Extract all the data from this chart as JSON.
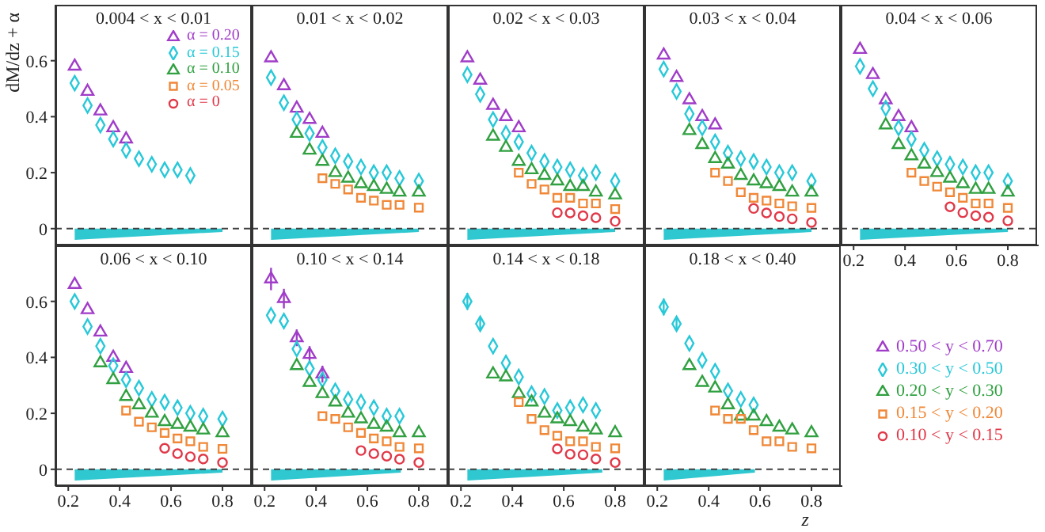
{
  "chart_data": [
    {
      "type": "scatter",
      "title": "0.004 < x < 0.01",
      "ylabel": "dM/dz + α",
      "tick_labels": "y",
      "legend": "top right",
      "x": [
        0.225,
        0.275,
        0.325,
        0.375,
        0.425,
        0.475,
        0.525,
        0.575,
        0.625,
        0.675
      ],
      "xlim": [
        0.15,
        0.92
      ],
      "ylim": [
        -0.06,
        0.8
      ],
      "xticks": [
        0.2,
        0.4,
        0.6,
        0.8
      ],
      "yticks": [
        0,
        0.2,
        0.4,
        0.6
      ],
      "ref_lines": [
        {
          "axis": "y",
          "value": 0,
          "line_style": "dashed",
          "color": "#404040"
        }
      ],
      "series": [
        {
          "name": "α = 0.20",
          "color": "#a03cc8",
          "marker": "triangle",
          "values": [
            0.58,
            0.49,
            0.42,
            0.36,
            0.32,
            null,
            null,
            null,
            null,
            null
          ]
        },
        {
          "name": "α = 0.15",
          "color": "#28c8d8",
          "marker": "diamond",
          "values": [
            0.52,
            0.44,
            0.37,
            0.32,
            0.28,
            0.25,
            0.23,
            0.21,
            0.21,
            0.19
          ]
        },
        {
          "name": "α = 0.10",
          "color": "#30a040",
          "marker": "triangle",
          "values": [
            null,
            null,
            null,
            null,
            null,
            null,
            null,
            null,
            null,
            null
          ]
        },
        {
          "name": "α = 0.05",
          "color": "#f08838",
          "marker": "square",
          "values": [
            null,
            null,
            null,
            null,
            null,
            null,
            null,
            null,
            null,
            null
          ]
        },
        {
          "name": "α = 0",
          "color": "#e03848",
          "marker": "circle",
          "values": [
            null,
            null,
            null,
            null,
            null,
            null,
            null,
            null,
            null,
            null
          ]
        },
        {
          "type": "area",
          "color": "#30c8d0",
          "x": [
            0.225,
            0.8
          ],
          "values": [
            -0.04,
            -0.012
          ]
        }
      ]
    },
    {
      "type": "scatter",
      "title": "0.01 < x < 0.02",
      "tick_labels": false,
      "x": [
        0.225,
        0.275,
        0.325,
        0.375,
        0.425,
        0.475,
        0.525,
        0.575,
        0.625,
        0.675,
        0.725,
        0.8
      ],
      "xlim": [
        0.15,
        0.92
      ],
      "ylim": [
        -0.06,
        0.8
      ],
      "xticks": [
        0.2,
        0.4,
        0.6,
        0.8
      ],
      "yticks": [
        0,
        0.2,
        0.4,
        0.6
      ],
      "ref_lines": [
        {
          "axis": "y",
          "value": 0,
          "line_style": "dashed",
          "color": "#404040"
        }
      ],
      "series": [
        {
          "color": "#a03cc8",
          "marker": "triangle",
          "values": [
            0.61,
            0.51,
            0.43,
            0.39,
            0.34,
            null,
            null,
            null,
            null,
            null,
            null,
            null
          ]
        },
        {
          "color": "#28c8d8",
          "marker": "diamond",
          "values": [
            0.54,
            0.45,
            0.39,
            0.34,
            0.29,
            0.26,
            0.24,
            0.22,
            0.2,
            0.2,
            0.18,
            0.17
          ]
        },
        {
          "color": "#30a040",
          "marker": "triangle",
          "values": [
            null,
            null,
            0.34,
            0.28,
            0.24,
            0.2,
            0.18,
            0.16,
            0.15,
            0.14,
            0.13,
            0.13
          ]
        },
        {
          "color": "#f08838",
          "marker": "square",
          "values": [
            null,
            null,
            null,
            null,
            0.18,
            0.16,
            0.14,
            0.11,
            0.1,
            0.085,
            0.085,
            0.075
          ]
        },
        {
          "type": "area",
          "color": "#30c8d0",
          "x": [
            0.225,
            0.8
          ],
          "values": [
            -0.04,
            -0.012
          ]
        }
      ]
    },
    {
      "type": "scatter",
      "title": "0.02 < x < 0.03",
      "tick_labels": false,
      "x": [
        0.225,
        0.275,
        0.325,
        0.375,
        0.425,
        0.475,
        0.525,
        0.575,
        0.625,
        0.675,
        0.725,
        0.8
      ],
      "xlim": [
        0.15,
        0.92
      ],
      "ylim": [
        -0.06,
        0.8
      ],
      "xticks": [
        0.2,
        0.4,
        0.6,
        0.8
      ],
      "yticks": [
        0,
        0.2,
        0.4,
        0.6
      ],
      "ref_lines": [
        {
          "axis": "y",
          "value": 0,
          "line_style": "dashed",
          "color": "#404040"
        }
      ],
      "series": [
        {
          "color": "#a03cc8",
          "marker": "triangle",
          "values": [
            0.61,
            0.53,
            0.44,
            0.4,
            0.36,
            null,
            null,
            null,
            null,
            null,
            null,
            null
          ]
        },
        {
          "color": "#28c8d8",
          "marker": "diamond",
          "values": [
            0.55,
            0.48,
            0.39,
            0.34,
            0.31,
            0.27,
            0.24,
            0.22,
            0.21,
            0.19,
            0.2,
            0.17
          ]
        },
        {
          "color": "#30a040",
          "marker": "triangle",
          "values": [
            null,
            null,
            0.33,
            0.29,
            0.24,
            0.21,
            0.19,
            0.17,
            0.15,
            0.15,
            0.13,
            0.12
          ]
        },
        {
          "color": "#f08838",
          "marker": "square",
          "values": [
            null,
            null,
            null,
            null,
            0.2,
            0.16,
            0.14,
            0.11,
            0.11,
            0.09,
            0.09,
            0.07
          ]
        },
        {
          "color": "#e03848",
          "marker": "circle",
          "values": [
            null,
            null,
            null,
            null,
            null,
            null,
            null,
            0.057,
            0.056,
            0.046,
            0.039,
            0.026
          ]
        },
        {
          "type": "area",
          "color": "#30c8d0",
          "x": [
            0.225,
            0.8
          ],
          "values": [
            -0.04,
            -0.012
          ]
        }
      ]
    },
    {
      "type": "scatter",
      "title": "0.03 < x < 0.04",
      "tick_labels": false,
      "x": [
        0.225,
        0.275,
        0.325,
        0.375,
        0.425,
        0.475,
        0.525,
        0.575,
        0.625,
        0.675,
        0.725,
        0.8
      ],
      "xlim": [
        0.15,
        0.92
      ],
      "ylim": [
        -0.06,
        0.8
      ],
      "xticks": [
        0.2,
        0.4,
        0.6,
        0.8
      ],
      "yticks": [
        0,
        0.2,
        0.4,
        0.6
      ],
      "ref_lines": [
        {
          "axis": "y",
          "value": 0,
          "line_style": "dashed",
          "color": "#404040"
        }
      ],
      "series": [
        {
          "color": "#a03cc8",
          "marker": "triangle",
          "values": [
            0.62,
            0.54,
            0.46,
            0.4,
            0.37,
            null,
            null,
            null,
            null,
            null,
            null,
            null
          ]
        },
        {
          "color": "#28c8d8",
          "marker": "diamond",
          "values": [
            0.57,
            0.49,
            0.41,
            0.36,
            0.31,
            0.27,
            0.25,
            0.24,
            0.22,
            0.2,
            0.2,
            0.17
          ]
        },
        {
          "color": "#30a040",
          "marker": "triangle",
          "values": [
            null,
            null,
            0.35,
            0.3,
            0.25,
            0.23,
            0.19,
            0.17,
            0.16,
            0.15,
            0.13,
            0.13
          ]
        },
        {
          "color": "#f08838",
          "marker": "square",
          "values": [
            null,
            null,
            null,
            null,
            0.2,
            0.17,
            0.13,
            0.11,
            0.1,
            0.09,
            0.08,
            0.074
          ]
        },
        {
          "color": "#e03848",
          "marker": "circle",
          "values": [
            null,
            null,
            null,
            null,
            null,
            null,
            null,
            0.072,
            0.056,
            0.043,
            0.035,
            0.022
          ]
        },
        {
          "type": "area",
          "color": "#30c8d0",
          "x": [
            0.225,
            0.8
          ],
          "values": [
            -0.04,
            -0.012
          ]
        }
      ]
    },
    {
      "type": "scatter",
      "title": "0.04 < x < 0.06",
      "tick_labels": "x",
      "x": [
        0.225,
        0.275,
        0.325,
        0.375,
        0.425,
        0.475,
        0.525,
        0.575,
        0.625,
        0.675,
        0.725,
        0.8
      ],
      "xlim": [
        0.15,
        0.92
      ],
      "ylim": [
        -0.06,
        0.8
      ],
      "xticks": [
        0.2,
        0.4,
        0.6,
        0.8
      ],
      "yticks": [
        0,
        0.2,
        0.4,
        0.6
      ],
      "ref_lines": [
        {
          "axis": "y",
          "value": 0,
          "line_style": "dashed",
          "color": "#404040"
        }
      ],
      "series": [
        {
          "color": "#a03cc8",
          "marker": "triangle",
          "values": [
            0.64,
            0.55,
            0.46,
            0.4,
            0.36,
            null,
            null,
            null,
            null,
            null,
            null,
            null
          ]
        },
        {
          "color": "#28c8d8",
          "marker": "diamond",
          "values": [
            0.58,
            0.5,
            0.43,
            0.36,
            0.32,
            0.28,
            0.25,
            0.23,
            0.22,
            0.2,
            0.2,
            0.17
          ]
        },
        {
          "color": "#30a040",
          "marker": "triangle",
          "values": [
            null,
            null,
            0.37,
            0.3,
            0.26,
            0.23,
            0.2,
            0.18,
            0.16,
            0.14,
            0.14,
            0.13
          ]
        },
        {
          "color": "#f08838",
          "marker": "square",
          "values": [
            null,
            null,
            null,
            null,
            0.2,
            0.17,
            0.15,
            0.13,
            0.11,
            0.09,
            0.09,
            0.074
          ]
        },
        {
          "color": "#e03848",
          "marker": "circle",
          "values": [
            null,
            null,
            null,
            null,
            null,
            null,
            null,
            0.078,
            0.057,
            0.046,
            0.041,
            0.028
          ]
        },
        {
          "type": "area",
          "color": "#30c8d0",
          "x": [
            0.225,
            0.8
          ],
          "values": [
            -0.04,
            -0.012
          ]
        }
      ]
    },
    {
      "type": "scatter",
      "title": "0.06 < x < 0.10",
      "x": [
        0.225,
        0.275,
        0.325,
        0.375,
        0.425,
        0.475,
        0.525,
        0.575,
        0.625,
        0.675,
        0.725,
        0.8
      ],
      "xlim": [
        0.15,
        0.92
      ],
      "ylim": [
        -0.06,
        0.8
      ],
      "xticks": [
        0.2,
        0.4,
        0.6,
        0.8
      ],
      "yticks": [
        0,
        0.2,
        0.4,
        0.6
      ],
      "ref_lines": [
        {
          "axis": "y",
          "value": 0,
          "line_style": "dashed",
          "color": "#404040"
        }
      ],
      "series": [
        {
          "color": "#a03cc8",
          "marker": "triangle",
          "values": [
            0.66,
            0.57,
            0.49,
            0.4,
            0.36,
            null,
            null,
            null,
            null,
            null,
            null,
            null
          ]
        },
        {
          "color": "#28c8d8",
          "marker": "diamond",
          "values": [
            0.6,
            0.51,
            0.44,
            0.37,
            0.32,
            0.29,
            0.25,
            0.24,
            0.22,
            0.2,
            0.19,
            0.18
          ]
        },
        {
          "color": "#30a040",
          "marker": "triangle",
          "values": [
            null,
            null,
            0.38,
            0.32,
            0.26,
            0.23,
            0.2,
            0.17,
            0.16,
            0.15,
            0.14,
            0.13
          ]
        },
        {
          "color": "#f08838",
          "marker": "square",
          "values": [
            null,
            null,
            null,
            null,
            0.21,
            0.17,
            0.15,
            0.13,
            0.11,
            0.1,
            0.08,
            0.073
          ]
        },
        {
          "color": "#e03848",
          "marker": "circle",
          "values": [
            null,
            null,
            null,
            null,
            null,
            null,
            null,
            0.075,
            0.056,
            0.045,
            0.037,
            0.024
          ]
        },
        {
          "type": "area",
          "color": "#30c8d0",
          "x": [
            0.225,
            0.8
          ],
          "values": [
            -0.04,
            -0.012
          ]
        }
      ]
    },
    {
      "type": "scatter",
      "title": "0.10 < x < 0.14",
      "tick_labels": "x",
      "x": [
        0.225,
        0.275,
        0.325,
        0.375,
        0.425,
        0.475,
        0.525,
        0.575,
        0.625,
        0.675,
        0.725,
        0.8
      ],
      "xlim": [
        0.15,
        0.92
      ],
      "ylim": [
        -0.06,
        0.8
      ],
      "xticks": [
        0.2,
        0.4,
        0.6,
        0.8
      ],
      "yticks": [
        0,
        0.2,
        0.4,
        0.6
      ],
      "ref_lines": [
        {
          "axis": "y",
          "value": 0,
          "line_style": "dashed",
          "color": "#404040"
        }
      ],
      "series": [
        {
          "color": "#a03cc8",
          "marker": "triangle",
          "values": [
            0.68,
            0.61,
            0.47,
            0.41,
            0.34,
            null,
            null,
            null,
            null,
            null,
            null,
            null
          ],
          "errors": [
            0.04,
            0.035,
            0.03,
            0.03,
            0.03,
            null,
            null,
            null,
            null,
            null,
            null,
            null
          ]
        },
        {
          "color": "#28c8d8",
          "marker": "diamond",
          "values": [
            0.55,
            0.53,
            0.43,
            0.36,
            0.32,
            0.28,
            0.25,
            0.24,
            0.22,
            0.19,
            0.19,
            null
          ]
        },
        {
          "color": "#30a040",
          "marker": "triangle",
          "values": [
            null,
            null,
            0.37,
            0.31,
            0.27,
            0.24,
            0.2,
            0.18,
            0.16,
            0.15,
            0.13,
            0.13
          ]
        },
        {
          "color": "#f08838",
          "marker": "square",
          "values": [
            null,
            null,
            null,
            null,
            0.19,
            0.18,
            0.15,
            0.13,
            0.11,
            0.1,
            0.08,
            0.075
          ]
        },
        {
          "color": "#e03848",
          "marker": "circle",
          "values": [
            null,
            null,
            null,
            null,
            null,
            null,
            null,
            0.067,
            0.056,
            0.047,
            0.036,
            0.024
          ]
        },
        {
          "type": "area",
          "color": "#30c8d0",
          "x": [
            0.225,
            0.73
          ],
          "values": [
            -0.04,
            -0.012
          ]
        }
      ]
    },
    {
      "type": "scatter",
      "title": "0.14 < x < 0.18",
      "tick_labels": "x",
      "x": [
        0.225,
        0.275,
        0.325,
        0.375,
        0.425,
        0.475,
        0.525,
        0.575,
        0.625,
        0.675,
        0.725,
        0.8
      ],
      "xlim": [
        0.15,
        0.92
      ],
      "ylim": [
        -0.06,
        0.8
      ],
      "xticks": [
        0.2,
        0.4,
        0.6,
        0.8
      ],
      "yticks": [
        0,
        0.2,
        0.4,
        0.6
      ],
      "ref_lines": [
        {
          "axis": "y",
          "value": 0,
          "line_style": "dashed",
          "color": "#404040"
        }
      ],
      "series": [
        {
          "color": "#28c8d8",
          "marker": "diamond",
          "values": [
            0.6,
            0.52,
            0.44,
            0.38,
            0.33,
            0.27,
            0.26,
            0.21,
            0.22,
            0.23,
            0.21,
            null
          ],
          "errors": [
            0.03,
            0.02,
            null,
            null,
            null,
            null,
            null,
            null,
            null,
            null,
            null,
            null
          ]
        },
        {
          "color": "#30a040",
          "marker": "triangle",
          "values": [
            null,
            null,
            0.34,
            0.33,
            0.27,
            0.24,
            0.2,
            0.18,
            0.17,
            0.15,
            0.14,
            0.13
          ]
        },
        {
          "color": "#f08838",
          "marker": "square",
          "values": [
            null,
            null,
            null,
            null,
            0.24,
            0.18,
            0.14,
            0.12,
            0.1,
            0.1,
            0.08,
            0.075
          ]
        },
        {
          "color": "#e03848",
          "marker": "circle",
          "values": [
            null,
            null,
            null,
            null,
            null,
            null,
            null,
            0.073,
            0.054,
            0.052,
            0.037,
            0.024
          ]
        },
        {
          "type": "area",
          "color": "#30c8d0",
          "x": [
            0.225,
            0.75
          ],
          "values": [
            -0.04,
            -0.012
          ]
        }
      ]
    },
    {
      "type": "scatter",
      "title": "0.18 < x < 0.40",
      "tick_labels": "x",
      "xlabel": "z",
      "legend": "right",
      "x": [
        0.225,
        0.275,
        0.325,
        0.375,
        0.425,
        0.475,
        0.525,
        0.575,
        0.625,
        0.675,
        0.725,
        0.8
      ],
      "xlim": [
        0.15,
        0.92
      ],
      "ylim": [
        -0.06,
        0.8
      ],
      "xticks": [
        0.2,
        0.4,
        0.6,
        0.8
      ],
      "yticks": [
        0,
        0.2,
        0.4,
        0.6
      ],
      "ref_lines": [
        {
          "axis": "y",
          "value": 0,
          "line_style": "dashed",
          "color": "#404040"
        }
      ],
      "series": [
        {
          "name": "0.50 < y < 0.70",
          "color": "#a03cc8",
          "marker": "triangle",
          "values": [
            null,
            null,
            null,
            null,
            null,
            null,
            null,
            null,
            null,
            null,
            null,
            null
          ]
        },
        {
          "name": "0.30 < y < 0.50",
          "color": "#28c8d8",
          "marker": "diamond",
          "values": [
            0.58,
            0.52,
            0.45,
            0.39,
            0.35,
            0.28,
            0.25,
            0.23,
            null,
            null,
            null,
            null
          ],
          "errors": [
            0.03,
            0.02,
            null,
            null,
            null,
            null,
            null,
            null,
            null,
            null,
            null,
            null
          ]
        },
        {
          "name": "0.20 < y < 0.30",
          "color": "#30a040",
          "marker": "triangle",
          "values": [
            null,
            null,
            0.37,
            0.31,
            0.29,
            0.23,
            0.19,
            0.19,
            0.17,
            0.15,
            0.14,
            0.13
          ]
        },
        {
          "name": "0.15 < y < 0.20",
          "color": "#f08838",
          "marker": "square",
          "values": [
            null,
            null,
            null,
            null,
            0.21,
            0.18,
            0.18,
            0.14,
            0.1,
            0.1,
            0.08,
            0.075
          ]
        },
        {
          "name": "0.10 < y < 0.15",
          "color": "#e03848",
          "marker": "circle",
          "values": [
            null,
            null,
            null,
            null,
            null,
            null,
            null,
            null,
            null,
            null,
            null,
            null
          ]
        },
        {
          "type": "area",
          "color": "#30c8d0",
          "x": [
            0.225,
            0.58
          ],
          "values": [
            -0.04,
            -0.012
          ]
        }
      ]
    }
  ]
}
